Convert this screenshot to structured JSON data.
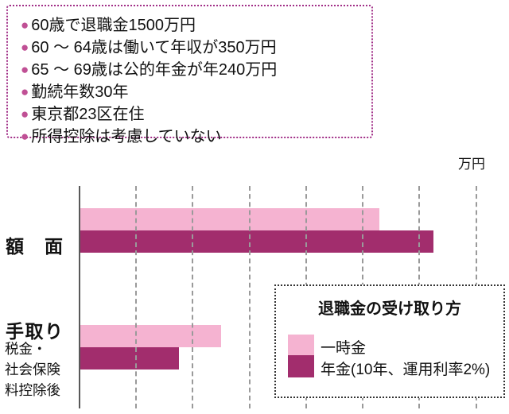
{
  "info_box": {
    "items": [
      "60歳で退職金1500万円",
      "60 〜 64歳は働いて年収が350万円",
      "65 〜 69歳は公的年金が年240万円",
      "勤続年数30年",
      "東京都23区在住",
      "所得控除は考慮していない"
    ]
  },
  "chart_data": {
    "type": "bar",
    "orientation": "horizontal",
    "unit_label": "万円",
    "xlabel": "",
    "ylabel": "",
    "xlim": [
      3400,
      4800
    ],
    "x_ticks": [
      3400,
      3600,
      3800,
      4000,
      4200,
      4400,
      4600,
      4800
    ],
    "grid": "dashed-vertical",
    "categories": [
      {
        "label": "額面",
        "sublabel_lines": []
      },
      {
        "label": "手取り",
        "sublabel_lines": [
          "税金・",
          "社会保険",
          "料控除後"
        ]
      }
    ],
    "series": [
      {
        "name": "一時金",
        "color": "#f5b3d1",
        "values": [
          4460,
          3900
        ]
      },
      {
        "name": "年金(10年、運用利率2%)",
        "color": "#a22d6d",
        "values": [
          4650,
          3750
        ]
      }
    ],
    "legend": {
      "title": "退職金の受け取り方",
      "position": "bottom-right"
    },
    "colors": {
      "accent_border": "#a12f87",
      "bullet": "#c05095",
      "axis": "#595959",
      "gridline": "#9a9a9a"
    }
  }
}
